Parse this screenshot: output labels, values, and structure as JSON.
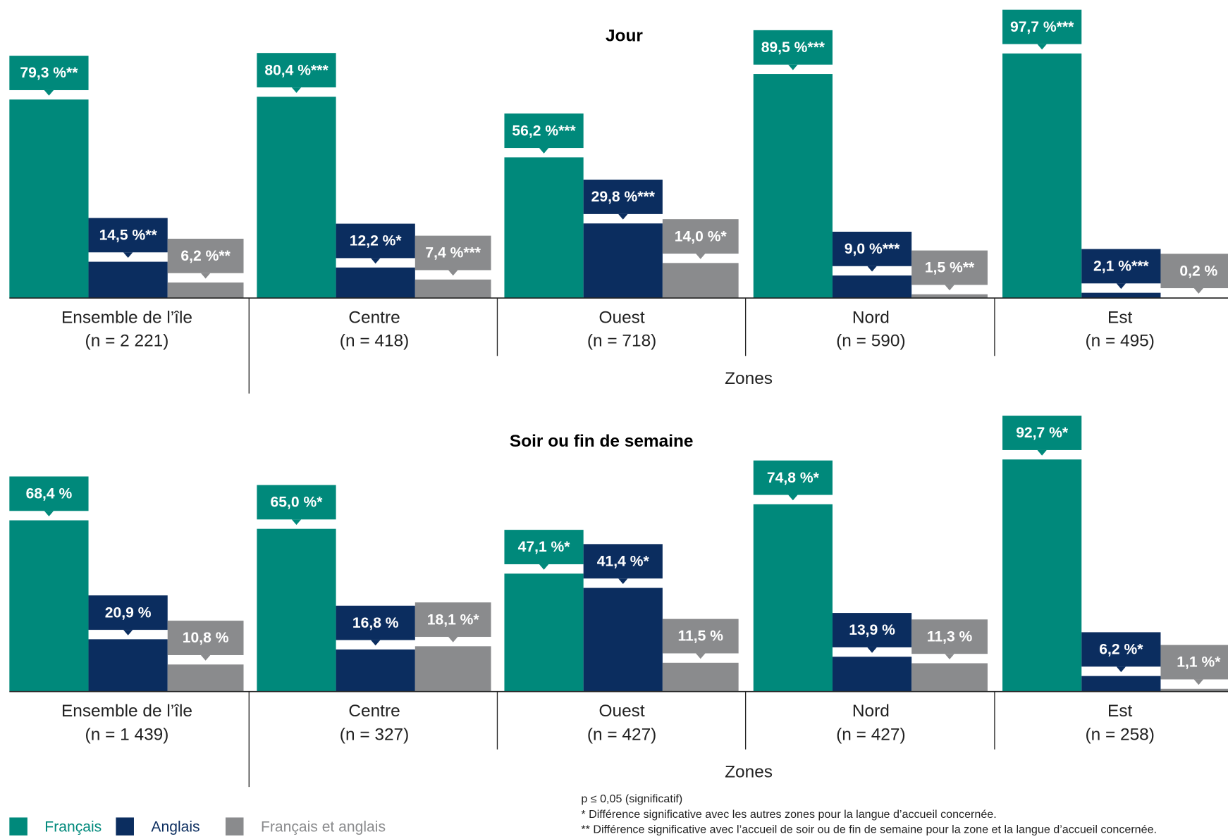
{
  "chart_data": [
    {
      "type": "bar",
      "title": "Jour",
      "xlabel": "Zones",
      "ylim": [
        0,
        100
      ],
      "categories": [
        "Ensemble de l’île",
        "Centre",
        "Ouest",
        "Nord",
        "Est"
      ],
      "category_sublabels": [
        "(n = 2 221)",
        "(n = 418)",
        "(n = 718)",
        "(n = 590)",
        "(n = 495)"
      ],
      "series": [
        {
          "name": "Français",
          "color": "#00897b",
          "values": [
            79.3,
            80.4,
            56.2,
            89.5,
            97.7
          ],
          "value_labels": [
            "79,3 %**",
            "80,4 %***",
            "56,2 %***",
            "89,5 %***",
            "97,7 %***"
          ]
        },
        {
          "name": "Anglais",
          "color": "#0b2d5f",
          "values": [
            14.5,
            12.2,
            29.8,
            9.0,
            2.1
          ],
          "value_labels": [
            "14,5 %**",
            "12,2 %*",
            "29,8 %***",
            "9,0 %***",
            "2,1 %***"
          ]
        },
        {
          "name": "Français et anglais",
          "color": "#8a8b8d",
          "values": [
            6.2,
            7.4,
            14.0,
            1.5,
            0.2
          ],
          "value_labels": [
            "6,2 %**",
            "7,4 %***",
            "14,0 %*",
            "1,5 %**",
            "0,2 %"
          ]
        }
      ]
    },
    {
      "type": "bar",
      "title": "Soir ou fin de semaine",
      "xlabel": "Zones",
      "ylim": [
        0,
        100
      ],
      "categories": [
        "Ensemble de l’île",
        "Centre",
        "Ouest",
        "Nord",
        "Est"
      ],
      "category_sublabels": [
        "(n = 1 439)",
        "(n = 327)",
        "(n = 427)",
        "(n = 427)",
        "(n = 258)"
      ],
      "series": [
        {
          "color": "#00897b",
          "values": [
            68.4,
            65.0,
            47.1,
            74.8,
            92.7
          ],
          "value_labels": [
            "68,4 %",
            "65,0 %*",
            "47,1 %*",
            "74,8 %*",
            "92,7 %*"
          ]
        },
        {
          "color": "#0b2d5f",
          "values": [
            20.9,
            16.8,
            41.4,
            13.9,
            6.2
          ],
          "value_labels": [
            "20,9 %",
            "16,8 %",
            "41,4 %*",
            "13,9 %",
            "6,2 %*"
          ]
        },
        {
          "color": "#8a8b8d",
          "values": [
            10.8,
            18.1,
            11.5,
            11.3,
            1.1
          ],
          "value_labels": [
            "10,8 %",
            "18,1 %*",
            "11,5 %",
            "11,3 %",
            "1,1 %*"
          ]
        }
      ]
    }
  ],
  "notes": [
    "p ≤ 0,05 (significatif)",
    "* Différence significative avec les autres zones pour la langue d’accueil concernée.",
    "** Différence significative avec l’accueil de soir ou de fin de semaine pour la zone et la langue d’accueil concernée."
  ]
}
